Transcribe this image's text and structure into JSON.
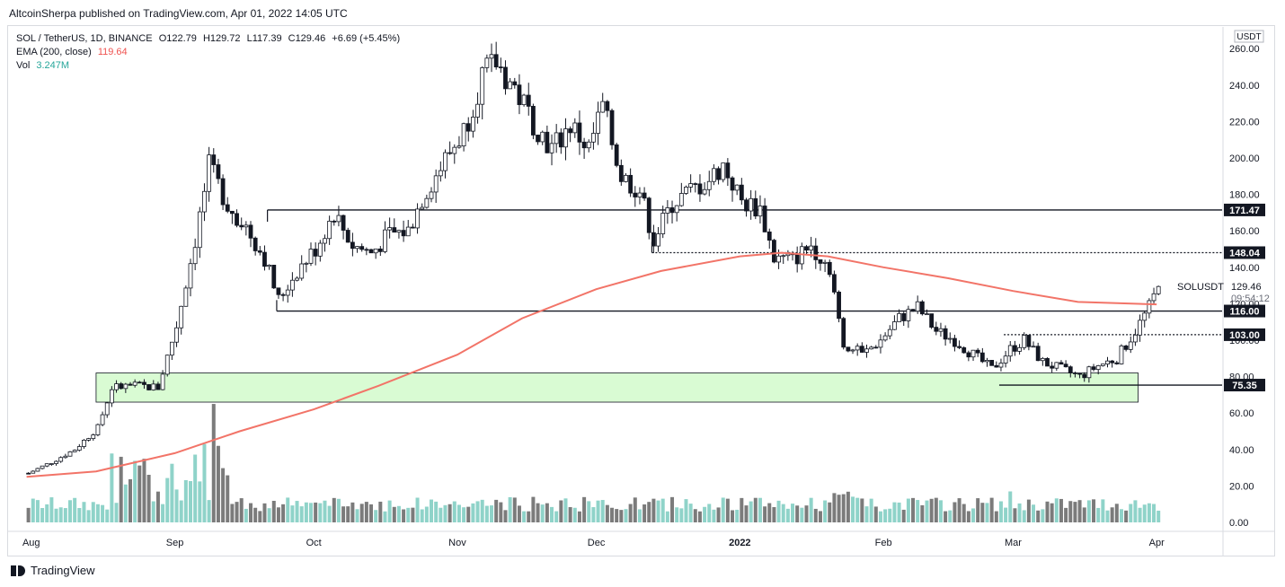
{
  "attribution": "AltcoinSherpa published on TradingView.com, Apr 01, 2022 14:05 UTC",
  "legend": {
    "line1": "SOL / TetherUS, 1D, BINANCE",
    "open": "O122.79",
    "high": "H129.72",
    "low": "L117.39",
    "close": "C129.46",
    "change": "+6.69 (+5.45%)",
    "ema_label": "EMA (200, close)",
    "ema_value": "119.64",
    "vol_label": "Vol",
    "vol_value": "3.247M"
  },
  "footer": {
    "brand": "TradingView"
  },
  "colors": {
    "up": "#ffffff",
    "down": "#131722",
    "ema": "#f27468",
    "zone": "#d9fbd3",
    "vol_up": "#8fd3c9",
    "vol_down": "#7b7b7b"
  },
  "chart_data": {
    "type": "candlestick",
    "symbol": "SOLUSDT",
    "currency": "USDT",
    "y_ticks": [
      "260.00",
      "240.00",
      "220.00",
      "200.00",
      "180.00",
      "160.00",
      "140.00",
      "120.00",
      "100.00",
      "80.00",
      "60.00",
      "40.00",
      "20.00",
      "0.00"
    ],
    "x_ticks": [
      "Aug",
      "Sep",
      "Oct",
      "Nov",
      "Dec",
      "2022",
      "Feb",
      "Mar",
      "Apr"
    ],
    "last_price": {
      "label": "SOLUSDT",
      "value": "129.46",
      "countdown": "09:54:12"
    },
    "levels": [
      {
        "label": "171.47",
        "value": 171.47,
        "style": "solid"
      },
      {
        "label": "148.04",
        "value": 148.04,
        "style": "dotted"
      },
      {
        "label": "116.00",
        "value": 116.0,
        "style": "solid"
      },
      {
        "label": "103.00",
        "value": 103.0,
        "style": "dotted"
      },
      {
        "label": "75.35",
        "value": 75.35,
        "style": "solid"
      }
    ],
    "demand_zone": [
      66,
      82
    ],
    "price_path": [
      [
        "2021-07-31",
        27
      ],
      [
        "2021-08-05",
        33
      ],
      [
        "2021-08-10",
        40
      ],
      [
        "2021-08-15",
        52
      ],
      [
        "2021-08-18",
        74
      ],
      [
        "2021-08-23",
        75
      ],
      [
        "2021-08-28",
        74
      ],
      [
        "2021-09-01",
        108
      ],
      [
        "2021-09-05",
        155
      ],
      [
        "2021-09-08",
        195
      ],
      [
        "2021-09-12",
        175
      ],
      [
        "2021-09-16",
        162
      ],
      [
        "2021-09-20",
        145
      ],
      [
        "2021-09-23",
        122
      ],
      [
        "2021-09-27",
        138
      ],
      [
        "2021-10-01",
        150
      ],
      [
        "2021-10-05",
        170
      ],
      [
        "2021-10-09",
        152
      ],
      [
        "2021-10-13",
        148
      ],
      [
        "2021-10-17",
        158
      ],
      [
        "2021-10-21",
        160
      ],
      [
        "2021-10-24",
        178
      ],
      [
        "2021-10-28",
        195
      ],
      [
        "2021-11-02",
        215
      ],
      [
        "2021-11-06",
        245
      ],
      [
        "2021-11-09",
        252
      ],
      [
        "2021-11-13",
        238
      ],
      [
        "2021-11-17",
        220
      ],
      [
        "2021-11-21",
        205
      ],
      [
        "2021-11-25",
        218
      ],
      [
        "2021-11-29",
        205
      ],
      [
        "2021-12-02",
        228
      ],
      [
        "2021-12-06",
        190
      ],
      [
        "2021-12-10",
        182
      ],
      [
        "2021-12-13",
        155
      ],
      [
        "2021-12-17",
        175
      ],
      [
        "2021-12-21",
        182
      ],
      [
        "2021-12-25",
        188
      ],
      [
        "2021-12-28",
        196
      ],
      [
        "2022-01-01",
        176
      ],
      [
        "2022-01-05",
        172
      ],
      [
        "2022-01-08",
        145
      ],
      [
        "2022-01-12",
        144
      ],
      [
        "2022-01-16",
        152
      ],
      [
        "2022-01-20",
        140
      ],
      [
        "2022-01-23",
        98
      ],
      [
        "2022-01-27",
        92
      ],
      [
        "2022-01-31",
        100
      ],
      [
        "2022-02-04",
        112
      ],
      [
        "2022-02-08",
        118
      ],
      [
        "2022-02-12",
        105
      ],
      [
        "2022-02-16",
        100
      ],
      [
        "2022-02-20",
        92
      ],
      [
        "2022-02-24",
        84
      ],
      [
        "2022-02-28",
        95
      ],
      [
        "2022-03-03",
        100
      ],
      [
        "2022-03-07",
        88
      ],
      [
        "2022-03-11",
        84
      ],
      [
        "2022-03-15",
        80
      ],
      [
        "2022-03-19",
        86
      ],
      [
        "2022-03-23",
        90
      ],
      [
        "2022-03-27",
        105
      ],
      [
        "2022-03-30",
        118
      ],
      [
        "2022-04-01",
        129.46
      ]
    ],
    "ema_path": [
      [
        "2021-07-31",
        25
      ],
      [
        "2021-08-15",
        28
      ],
      [
        "2021-09-01",
        38
      ],
      [
        "2021-09-15",
        50
      ],
      [
        "2021-10-01",
        62
      ],
      [
        "2021-10-15",
        75
      ],
      [
        "2021-11-01",
        92
      ],
      [
        "2021-11-15",
        112
      ],
      [
        "2021-12-01",
        128
      ],
      [
        "2021-12-15",
        138
      ],
      [
        "2022-01-01",
        146
      ],
      [
        "2022-01-10",
        148
      ],
      [
        "2022-01-20",
        146
      ],
      [
        "2022-02-01",
        140
      ],
      [
        "2022-02-15",
        134
      ],
      [
        "2022-03-01",
        127
      ],
      [
        "2022-03-15",
        121
      ],
      [
        "2022-04-01",
        119.64
      ]
    ]
  }
}
